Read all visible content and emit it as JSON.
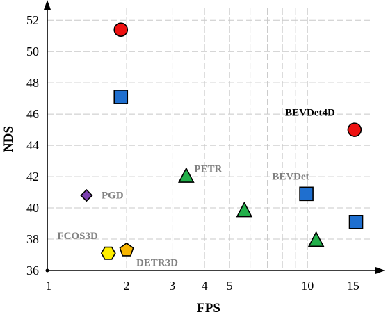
{
  "chart_data": {
    "type": "scatter",
    "title": "",
    "xlabel": "FPS",
    "ylabel": "NDS",
    "xscale": "log",
    "xlim": [
      1,
      17
    ],
    "ylim": [
      36,
      52.5
    ],
    "x_ticks": [
      1,
      2,
      3,
      4,
      5,
      10,
      15
    ],
    "y_ticks": [
      36,
      38,
      40,
      42,
      44,
      46,
      48,
      50,
      52
    ],
    "grid": true,
    "points": [
      {
        "x": 1.9,
        "y": 51.4,
        "shape": "circle",
        "color": "#ee1111"
      },
      {
        "x": 15.2,
        "y": 45.0,
        "shape": "circle",
        "color": "#ee1111"
      },
      {
        "x": 1.9,
        "y": 47.1,
        "shape": "square",
        "color": "#1f6fcf"
      },
      {
        "x": 9.9,
        "y": 40.9,
        "shape": "square",
        "color": "#1f6fcf"
      },
      {
        "x": 15.4,
        "y": 39.1,
        "shape": "square",
        "color": "#1f6fcf"
      },
      {
        "x": 3.4,
        "y": 42.0,
        "shape": "triangle",
        "color": "#22b04a"
      },
      {
        "x": 5.7,
        "y": 39.8,
        "shape": "triangle",
        "color": "#22b04a"
      },
      {
        "x": 10.8,
        "y": 37.9,
        "shape": "triangle",
        "color": "#22b04a"
      },
      {
        "x": 1.4,
        "y": 40.8,
        "shape": "diamond",
        "color": "#7b3fb0"
      },
      {
        "x": 1.7,
        "y": 37.1,
        "shape": "hexagon",
        "color": "#ffee00"
      },
      {
        "x": 2.0,
        "y": 37.3,
        "shape": "pentagon",
        "color": "#f7b500"
      }
    ],
    "annotations": [
      {
        "text": "BEVDet4D",
        "x": 8.2,
        "y": 45.9,
        "color": "#000000"
      },
      {
        "text": "PETR",
        "x": 3.65,
        "y": 42.3,
        "color": "#808080"
      },
      {
        "text": "BEVDet",
        "x": 7.3,
        "y": 41.8,
        "color": "#808080"
      },
      {
        "text": "PGD",
        "x": 1.6,
        "y": 40.6,
        "color": "#808080"
      },
      {
        "text": "FCOS3D",
        "x": 1.08,
        "y": 38.0,
        "color": "#808080"
      },
      {
        "text": "DETR3D",
        "x": 2.18,
        "y": 36.3,
        "color": "#808080"
      }
    ]
  }
}
